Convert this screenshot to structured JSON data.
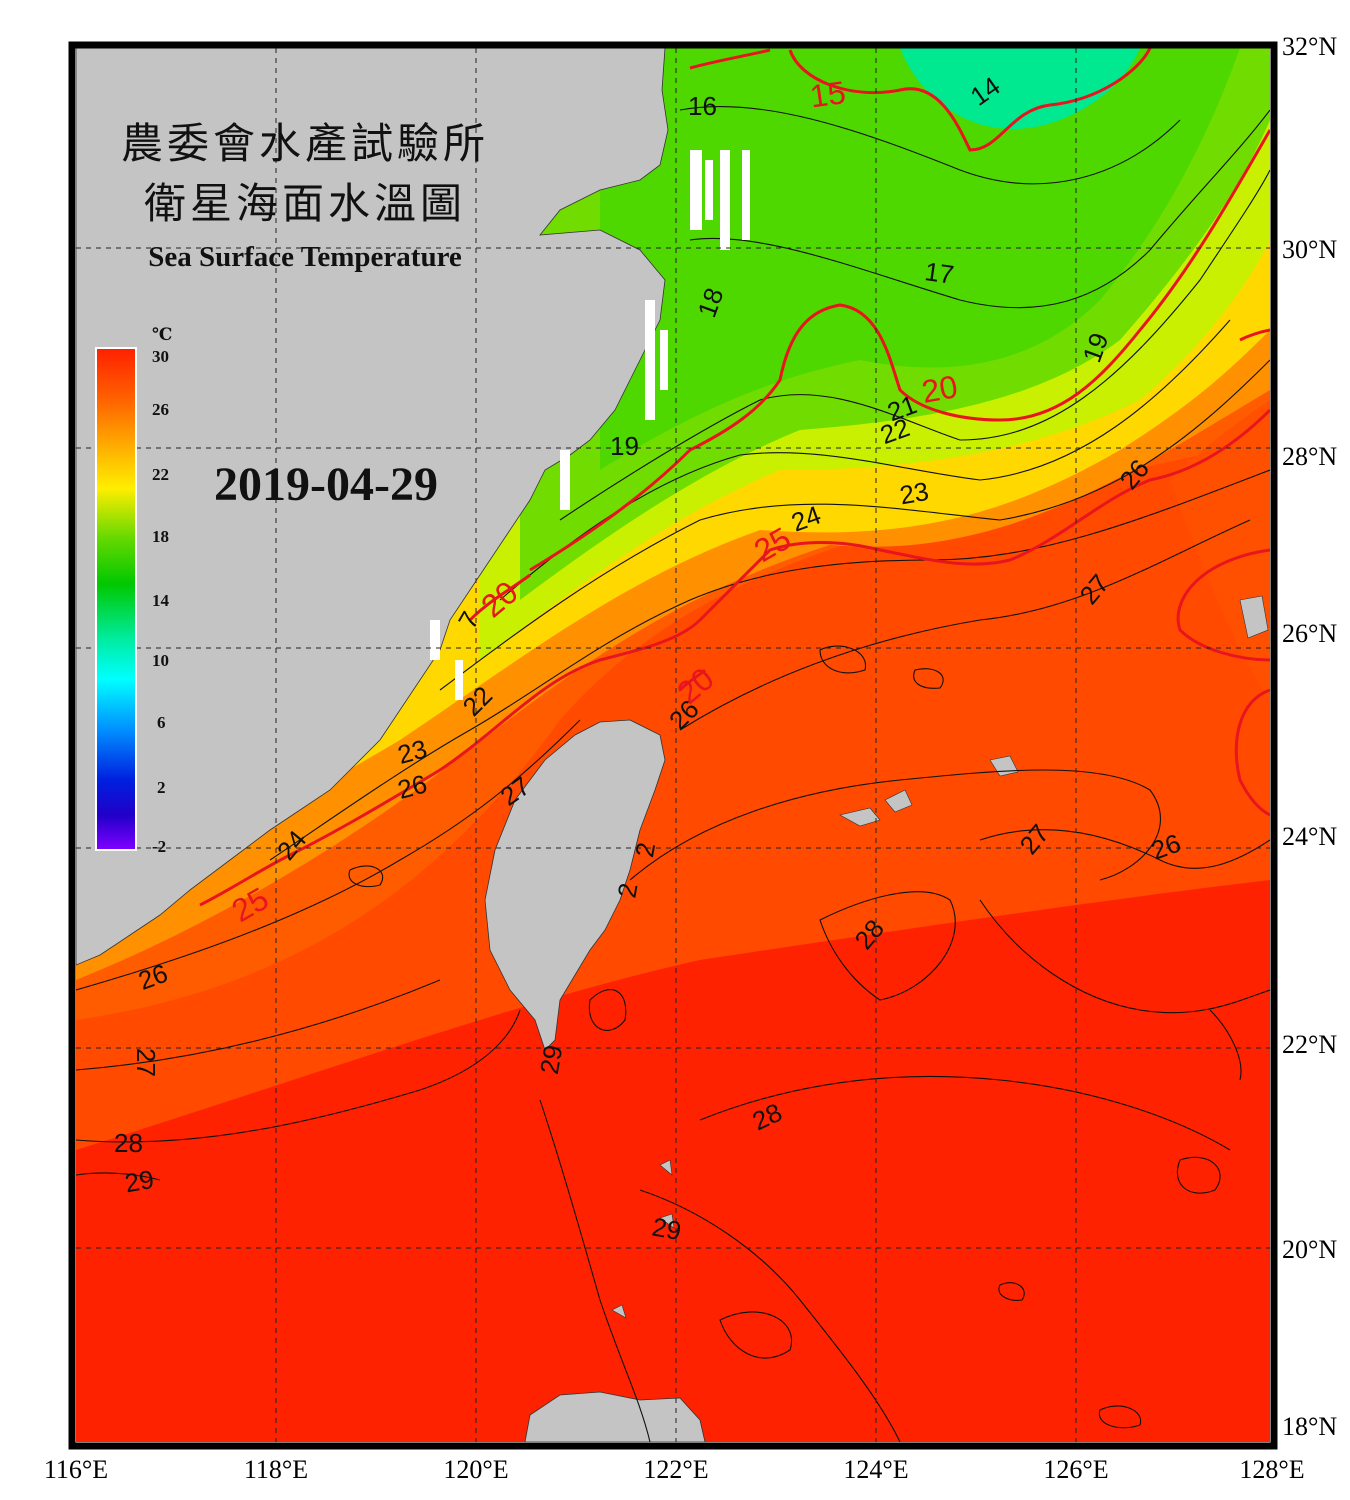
{
  "header": {
    "title_line1": "農委會水產試驗所",
    "title_line2": "衛星海面水溫圖",
    "title_en": "Sea Surface Temperature",
    "date": "2019-04-29"
  },
  "colorbar": {
    "unit": "℃",
    "ticks": [
      "30",
      "26",
      "22",
      "18",
      "14",
      "10",
      "6",
      "2",
      "-2"
    ],
    "colors": [
      "#ff2000",
      "#ff5a00",
      "#ffa000",
      "#ffe100",
      "#c8ff00",
      "#50dc00",
      "#00c800",
      "#00e6a0",
      "#00ffff",
      "#00a0ff",
      "#0040ff",
      "#0000c8",
      "#7800ff"
    ]
  },
  "axes": {
    "lon_labels": [
      "116°E",
      "118°E",
      "120°E",
      "122°E",
      "124°E",
      "126°E",
      "128°E"
    ],
    "lat_labels": [
      "32°N",
      "30°N",
      "28°N",
      "26°N",
      "24°N",
      "22°N",
      "20°N",
      "18°N"
    ]
  },
  "contour_labels": {
    "red": [
      "15",
      "20",
      "20",
      "25",
      "25",
      "20"
    ],
    "black": [
      "14",
      "16",
      "17",
      "18",
      "19",
      "19",
      "21",
      "22",
      "23",
      "24",
      "26",
      "27",
      "22",
      "23",
      "26",
      "27",
      "24",
      "26",
      "27",
      "28",
      "29",
      "26",
      "28",
      "27",
      "26",
      "28",
      "29",
      "29",
      "2",
      "2",
      "7"
    ]
  },
  "colors": {
    "land": "#c4c4c4",
    "frame": "#000000",
    "red_contour": "#e8141e",
    "warm_sea": "#ff2a00",
    "cold_sea": "#00e88a"
  }
}
